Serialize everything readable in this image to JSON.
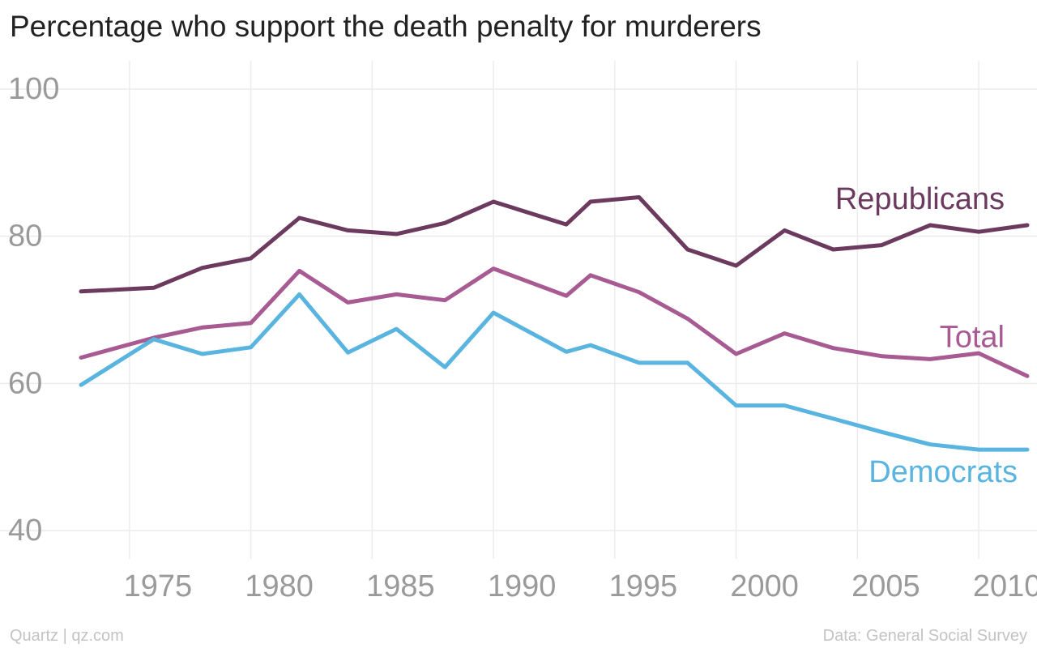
{
  "chart_data": {
    "type": "line",
    "title": "Percentage who support the death penalty for murderers",
    "xlim": [
      1972,
      2012
    ],
    "ylim": [
      40,
      100
    ],
    "x_ticks": [
      1975,
      1980,
      1985,
      1990,
      1995,
      2000,
      2005,
      2010
    ],
    "y_ticks": [
      40,
      60,
      80,
      100
    ],
    "grid": true,
    "legend": "inline labels at right end of each line",
    "x": [
      1973,
      1976,
      1978,
      1980,
      1982,
      1984,
      1986,
      1988,
      1990,
      1993,
      1994,
      1996,
      1998,
      2000,
      2002,
      2004,
      2006,
      2008,
      2010,
      2012
    ],
    "series": [
      {
        "name": "Republicans",
        "color": "#6b3a5e",
        "values": [
          72.5,
          73,
          75.7,
          77,
          82.5,
          80.8,
          80.3,
          81.8,
          84.7,
          81.6,
          84.7,
          85.3,
          78.2,
          76,
          80.8,
          78.2,
          78.8,
          81.5,
          80.6,
          81.5
        ]
      },
      {
        "name": "Total",
        "color": "#a85a92",
        "values": [
          63.5,
          66.2,
          67.6,
          68.2,
          75.3,
          71,
          72.1,
          71.3,
          75.6,
          71.9,
          74.7,
          72.4,
          68.8,
          64,
          66.8,
          64.8,
          63.7,
          63.3,
          64.1,
          61
        ]
      },
      {
        "name": "Democrats",
        "color": "#59b4e0",
        "values": [
          59.8,
          66,
          64,
          64.9,
          72.1,
          64.2,
          67.4,
          62.2,
          69.6,
          64.3,
          65.2,
          62.8,
          62.8,
          57,
          57,
          55.2,
          53.4,
          51.7,
          51,
          51
        ]
      }
    ]
  },
  "footer": {
    "left": "Quartz | qz.com",
    "right": "Data: General Social Survey"
  }
}
